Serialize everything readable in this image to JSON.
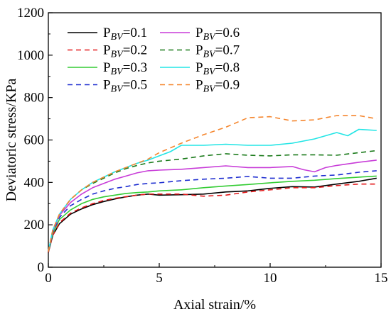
{
  "chart_data": {
    "type": "line",
    "title": "",
    "xlabel": "Axial strain/%",
    "ylabel": "Deviatoric stress/KPa",
    "xlim": [
      0,
      15
    ],
    "ylim": [
      0,
      1200
    ],
    "xticks": [
      0,
      5,
      10,
      15
    ],
    "yticks": [
      0,
      200,
      400,
      600,
      800,
      1000,
      1200
    ],
    "grid": false,
    "legend_position": "top-left",
    "series": [
      {
        "name": "P",
        "subscript": "BV",
        "suffix": "=0.1",
        "color": "#000000",
        "dash": "solid",
        "x": [
          0,
          0.2,
          0.5,
          1,
          1.5,
          2,
          2.5,
          3,
          3.5,
          4,
          4.5,
          5,
          6,
          7,
          8,
          9,
          10,
          11,
          12,
          13,
          14,
          14.8
        ],
        "y": [
          70,
          150,
          205,
          250,
          275,
          295,
          310,
          322,
          332,
          340,
          345,
          340,
          342,
          345,
          355,
          360,
          372,
          380,
          378,
          392,
          405,
          420
        ]
      },
      {
        "name": "P",
        "subscript": "BV",
        "suffix": "=0.2",
        "color": "#e31a1c",
        "dash": "dashed",
        "x": [
          0,
          0.2,
          0.5,
          1,
          1.5,
          2,
          2.5,
          3,
          3.5,
          4,
          4.5,
          5,
          6,
          7,
          8,
          9,
          10,
          11,
          12,
          13,
          14,
          14.8
        ],
        "y": [
          70,
          150,
          210,
          255,
          280,
          300,
          315,
          325,
          333,
          340,
          345,
          345,
          345,
          335,
          340,
          355,
          365,
          375,
          375,
          385,
          392,
          392
        ]
      },
      {
        "name": "P",
        "subscript": "BV",
        "suffix": "=0.3",
        "color": "#33cc33",
        "dash": "solid",
        "x": [
          0,
          0.2,
          0.5,
          1,
          1.5,
          2,
          2.5,
          3,
          3.5,
          4,
          4.5,
          5,
          6,
          7,
          8,
          9,
          10,
          11,
          12,
          13,
          14,
          14.8
        ],
        "y": [
          75,
          160,
          225,
          270,
          300,
          320,
          332,
          340,
          348,
          352,
          355,
          360,
          365,
          375,
          383,
          390,
          398,
          405,
          410,
          418,
          425,
          430
        ]
      },
      {
        "name": "P",
        "subscript": "BV",
        "suffix": "=0.5",
        "color": "#1f2fd0",
        "dash": "dashed",
        "x": [
          0,
          0.2,
          0.5,
          1,
          1.5,
          2,
          2.5,
          3,
          3.5,
          4,
          4.5,
          5,
          6,
          7,
          8,
          9,
          10,
          11,
          12,
          13,
          14,
          14.8
        ],
        "y": [
          75,
          165,
          235,
          290,
          320,
          345,
          360,
          372,
          380,
          390,
          395,
          398,
          408,
          415,
          420,
          428,
          420,
          420,
          430,
          435,
          448,
          455
        ]
      },
      {
        "name": "P",
        "subscript": "BV",
        "suffix": "=0.6",
        "color": "#c83cd8",
        "dash": "solid",
        "x": [
          0,
          0.2,
          0.5,
          1,
          1.5,
          2,
          2.5,
          3,
          3.5,
          4,
          4.5,
          5,
          6,
          7,
          8,
          9,
          10,
          11,
          11.5,
          12,
          12.5,
          13,
          14,
          14.8
        ],
        "y": [
          75,
          170,
          245,
          305,
          345,
          375,
          395,
          415,
          430,
          445,
          455,
          458,
          462,
          470,
          478,
          470,
          470,
          475,
          460,
          450,
          470,
          480,
          495,
          505
        ]
      },
      {
        "name": "P",
        "subscript": "BV",
        "suffix": "=0.7",
        "color": "#1a7a1a",
        "dash": "dashed",
        "x": [
          0,
          0.2,
          0.5,
          1,
          1.5,
          2,
          2.5,
          3,
          3.5,
          4,
          4.5,
          5,
          6,
          7,
          8,
          9,
          10,
          11,
          12,
          13,
          14,
          14.8
        ],
        "y": [
          75,
          175,
          250,
          320,
          365,
          395,
          420,
          445,
          465,
          480,
          492,
          500,
          510,
          525,
          535,
          528,
          525,
          530,
          530,
          528,
          540,
          550
        ]
      },
      {
        "name": "P",
        "subscript": "BV",
        "suffix": "=0.8",
        "color": "#22e5e5",
        "dash": "solid",
        "x": [
          0,
          0.2,
          0.5,
          1,
          1.5,
          2,
          2.5,
          3,
          3.5,
          4,
          4.5,
          5,
          5.5,
          6,
          7,
          8,
          9,
          10,
          11,
          12,
          13,
          13.5,
          14,
          14.8
        ],
        "y": [
          75,
          175,
          250,
          320,
          365,
          400,
          425,
          450,
          470,
          490,
          505,
          525,
          545,
          575,
          575,
          580,
          575,
          575,
          585,
          605,
          635,
          620,
          650,
          645
        ]
      },
      {
        "name": "P",
        "subscript": "BV",
        "suffix": "=0.9",
        "color": "#f5862e",
        "dash": "dashed",
        "x": [
          0,
          0.2,
          0.5,
          1,
          1.5,
          2,
          2.5,
          3,
          3.5,
          4,
          4.5,
          5,
          6,
          7,
          8,
          9,
          10,
          11,
          12,
          13,
          14,
          14.8
        ],
        "y": [
          75,
          175,
          250,
          320,
          365,
          400,
          425,
          450,
          470,
          490,
          510,
          540,
          585,
          625,
          660,
          705,
          710,
          690,
          695,
          715,
          715,
          700
        ]
      }
    ]
  }
}
